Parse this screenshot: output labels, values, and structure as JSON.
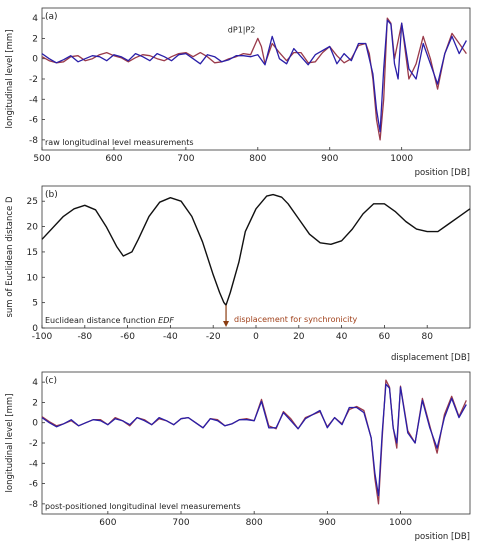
{
  "colors": {
    "series1": "#9a3a4a",
    "series2": "#2a1fa8",
    "edf": "#111111",
    "arrow": "#8a3c10",
    "annot": "#a0401a"
  },
  "chart_data": [
    {
      "type": "line",
      "panel_label": "(a)",
      "ylabel": "longitudinal level [mm]",
      "xlabel": "position [DB]",
      "xlim": [
        500,
        1095
      ],
      "ylim": [
        -9,
        5
      ],
      "xticks": [
        "500",
        "600",
        "700",
        "800",
        "900",
        "1000"
      ],
      "yticks": [
        "4",
        "2",
        "0",
        "-2",
        "-4",
        "-6",
        "-8"
      ],
      "annotation": "dP1|P2",
      "annotation_at": [
        800,
        1.2
      ],
      "caption": "raw longitudinal level measurements",
      "grid": false,
      "series": [
        {
          "color_key": "series1",
          "x": [
            500,
            510,
            520,
            530,
            540,
            550,
            560,
            570,
            580,
            590,
            600,
            610,
            620,
            630,
            640,
            650,
            660,
            670,
            680,
            690,
            700,
            710,
            720,
            730,
            740,
            750,
            760,
            770,
            780,
            790,
            800,
            805,
            810,
            820,
            830,
            840,
            850,
            860,
            870,
            880,
            890,
            900,
            910,
            920,
            930,
            940,
            950,
            955,
            960,
            965,
            970,
            975,
            980,
            985,
            990,
            1000,
            1010,
            1020,
            1030,
            1040,
            1050,
            1060,
            1070,
            1080,
            1090
          ],
          "y": [
            0.2,
            -0.2,
            -0.4,
            -0.3,
            0.2,
            0.3,
            -0.2,
            0,
            0.4,
            0.6,
            0.3,
            0.1,
            -0.3,
            0.1,
            0.4,
            0.3,
            0,
            -0.2,
            0.2,
            0.5,
            0.6,
            0.2,
            0.6,
            0.2,
            -0.4,
            -0.3,
            0,
            0.2,
            0.5,
            0.4,
            2,
            1.2,
            -0.5,
            1.5,
            0.6,
            -0.2,
            0.6,
            0.6,
            -0.4,
            -0.3,
            0.6,
            1.2,
            0.3,
            -0.4,
            0,
            1.3,
            1.5,
            0.5,
            -2,
            -6,
            -8,
            -4,
            4,
            3.5,
            0,
            3.5,
            -2,
            -0.5,
            2.2,
            0,
            -3,
            0.5,
            2.5,
            1.5,
            0.5
          ]
        },
        {
          "color_key": "series2",
          "x": [
            500,
            510,
            520,
            530,
            540,
            550,
            560,
            570,
            580,
            590,
            600,
            610,
            620,
            630,
            640,
            650,
            660,
            670,
            680,
            690,
            700,
            710,
            720,
            730,
            740,
            750,
            760,
            770,
            780,
            790,
            800,
            810,
            820,
            830,
            840,
            850,
            860,
            870,
            880,
            890,
            900,
            910,
            920,
            930,
            940,
            950,
            960,
            965,
            970,
            975,
            980,
            985,
            990,
            995,
            1000,
            1010,
            1020,
            1030,
            1040,
            1050,
            1060,
            1070,
            1080,
            1090
          ],
          "y": [
            0.5,
            0,
            -0.4,
            -0.1,
            0.3,
            -0.3,
            0,
            0.3,
            0.2,
            -0.2,
            0.4,
            0.2,
            -0.2,
            0.5,
            0.2,
            -0.2,
            0.5,
            0.2,
            -0.2,
            0.4,
            0.5,
            0,
            -0.5,
            0.4,
            0.2,
            -0.3,
            -0.1,
            0.3,
            0.3,
            0.2,
            0.4,
            -0.6,
            2.2,
            0,
            -0.5,
            1,
            0.2,
            -0.6,
            0.4,
            0.8,
            1.2,
            -0.5,
            0.5,
            -0.2,
            1.5,
            1.5,
            -1.5,
            -5,
            -7.2,
            -1,
            3.8,
            3.4,
            -0.5,
            -2,
            3.5,
            -1,
            -2,
            1.5,
            -0.5,
            -2.5,
            0.5,
            2.2,
            0.5,
            1.8
          ]
        }
      ]
    },
    {
      "type": "line",
      "panel_label": "(b)",
      "ylabel": "sum of Euclidean distance D",
      "xlabel": "displacement [DB]",
      "xlim": [
        -100,
        100
      ],
      "ylim": [
        0,
        28
      ],
      "xticks": [
        "-100",
        "-80",
        "-60",
        "-40",
        "-20",
        "0",
        "20",
        "40",
        "60",
        "80"
      ],
      "yticks": [
        "25",
        "20",
        "15",
        "10",
        "5",
        "0"
      ],
      "caption": "Euclidean distance function",
      "caption_emph": "EDF",
      "annotation": "displacement for synchronicity",
      "annotation_at": -14,
      "grid": false,
      "series": [
        {
          "color_key": "edf",
          "x": [
            -100,
            -90,
            -85,
            -80,
            -75,
            -70,
            -65,
            -62,
            -58,
            -55,
            -50,
            -45,
            -40,
            -35,
            -30,
            -25,
            -20,
            -17,
            -15,
            -14,
            -12,
            -8,
            -5,
            0,
            5,
            8,
            12,
            15,
            20,
            25,
            30,
            35,
            40,
            45,
            50,
            55,
            60,
            65,
            70,
            75,
            80,
            85,
            90,
            95,
            100
          ],
          "y": [
            17.5,
            22,
            23.5,
            24.2,
            23.3,
            20,
            16,
            14.2,
            15,
            17.5,
            22,
            24.8,
            25.7,
            25,
            22,
            17,
            10.5,
            7,
            5,
            4.5,
            7,
            13,
            19,
            23.5,
            26,
            26.3,
            25.8,
            24.5,
            21.5,
            18.5,
            16.8,
            16.5,
            17.2,
            19.5,
            22.5,
            24.5,
            24.5,
            23,
            21,
            19.5,
            19,
            19,
            20.5,
            22,
            23.5
          ]
        }
      ]
    },
    {
      "type": "line",
      "panel_label": "(c)",
      "ylabel": "longitudinal level [mm]",
      "xlabel": "position [DB]",
      "xlim": [
        510,
        1095
      ],
      "ylim": [
        -9,
        5
      ],
      "xticks": [
        "600",
        "700",
        "800",
        "900",
        "1000"
      ],
      "yticks": [
        "4",
        "2",
        "0",
        "-2",
        "-4",
        "-6",
        "-8"
      ],
      "caption": "post-positioned longitudinal level measurements",
      "grid": false,
      "series": [
        {
          "color_key": "series1",
          "x": [
            510,
            520,
            530,
            540,
            550,
            560,
            570,
            580,
            590,
            600,
            610,
            620,
            630,
            640,
            650,
            660,
            670,
            680,
            690,
            700,
            710,
            720,
            730,
            740,
            750,
            760,
            770,
            780,
            790,
            800,
            810,
            820,
            830,
            840,
            850,
            860,
            870,
            880,
            890,
            900,
            910,
            920,
            930,
            940,
            950,
            960,
            965,
            970,
            975,
            980,
            985,
            990,
            995,
            1000,
            1010,
            1020,
            1030,
            1040,
            1050,
            1060,
            1070,
            1080,
            1090
          ],
          "y": [
            0.6,
            0.1,
            -0.3,
            -0.1,
            0.2,
            -0.3,
            0,
            0.3,
            0.3,
            -0.2,
            0.5,
            0.2,
            -0.3,
            0.5,
            0.3,
            -0.2,
            0.4,
            0.2,
            -0.2,
            0.4,
            0.5,
            0,
            -0.5,
            0.4,
            0.3,
            -0.3,
            -0.1,
            0.3,
            0.4,
            0.2,
            2.3,
            -0.3,
            -0.6,
            1.1,
            0.4,
            -0.6,
            0.5,
            0.8,
            1.1,
            -0.4,
            0.5,
            -0.1,
            1.3,
            1.6,
            1.2,
            -1.5,
            -5.5,
            -8,
            -1.5,
            4.2,
            3.5,
            -0.5,
            -2.5,
            3.6,
            -0.8,
            -2,
            2.4,
            -0.3,
            -3,
            0.8,
            2.6,
            0.6,
            2.2
          ]
        },
        {
          "color_key": "series2",
          "x": [
            510,
            520,
            530,
            540,
            550,
            560,
            570,
            580,
            590,
            600,
            610,
            620,
            630,
            640,
            650,
            660,
            670,
            680,
            690,
            700,
            710,
            720,
            730,
            740,
            750,
            760,
            770,
            780,
            790,
            800,
            810,
            820,
            830,
            840,
            850,
            860,
            870,
            880,
            890,
            900,
            910,
            920,
            930,
            940,
            950,
            960,
            965,
            970,
            975,
            980,
            985,
            990,
            995,
            1000,
            1010,
            1020,
            1030,
            1040,
            1050,
            1060,
            1070,
            1080,
            1090
          ],
          "y": [
            0.5,
            0,
            -0.4,
            -0.1,
            0.3,
            -0.3,
            0,
            0.3,
            0.2,
            -0.2,
            0.4,
            0.2,
            -0.2,
            0.5,
            0.2,
            -0.2,
            0.5,
            0.2,
            -0.2,
            0.4,
            0.5,
            0,
            -0.5,
            0.4,
            0.2,
            -0.3,
            -0.1,
            0.3,
            0.3,
            0.2,
            2.1,
            -0.5,
            -0.5,
            1,
            0.2,
            -0.6,
            0.4,
            0.8,
            1.2,
            -0.5,
            0.5,
            -0.2,
            1.5,
            1.5,
            1,
            -1.5,
            -5,
            -7.2,
            -1,
            3.8,
            3.4,
            -0.5,
            -2,
            3.5,
            -1,
            -2,
            2.2,
            -0.5,
            -2.5,
            0.5,
            2.4,
            0.5,
            1.8
          ]
        }
      ]
    }
  ]
}
